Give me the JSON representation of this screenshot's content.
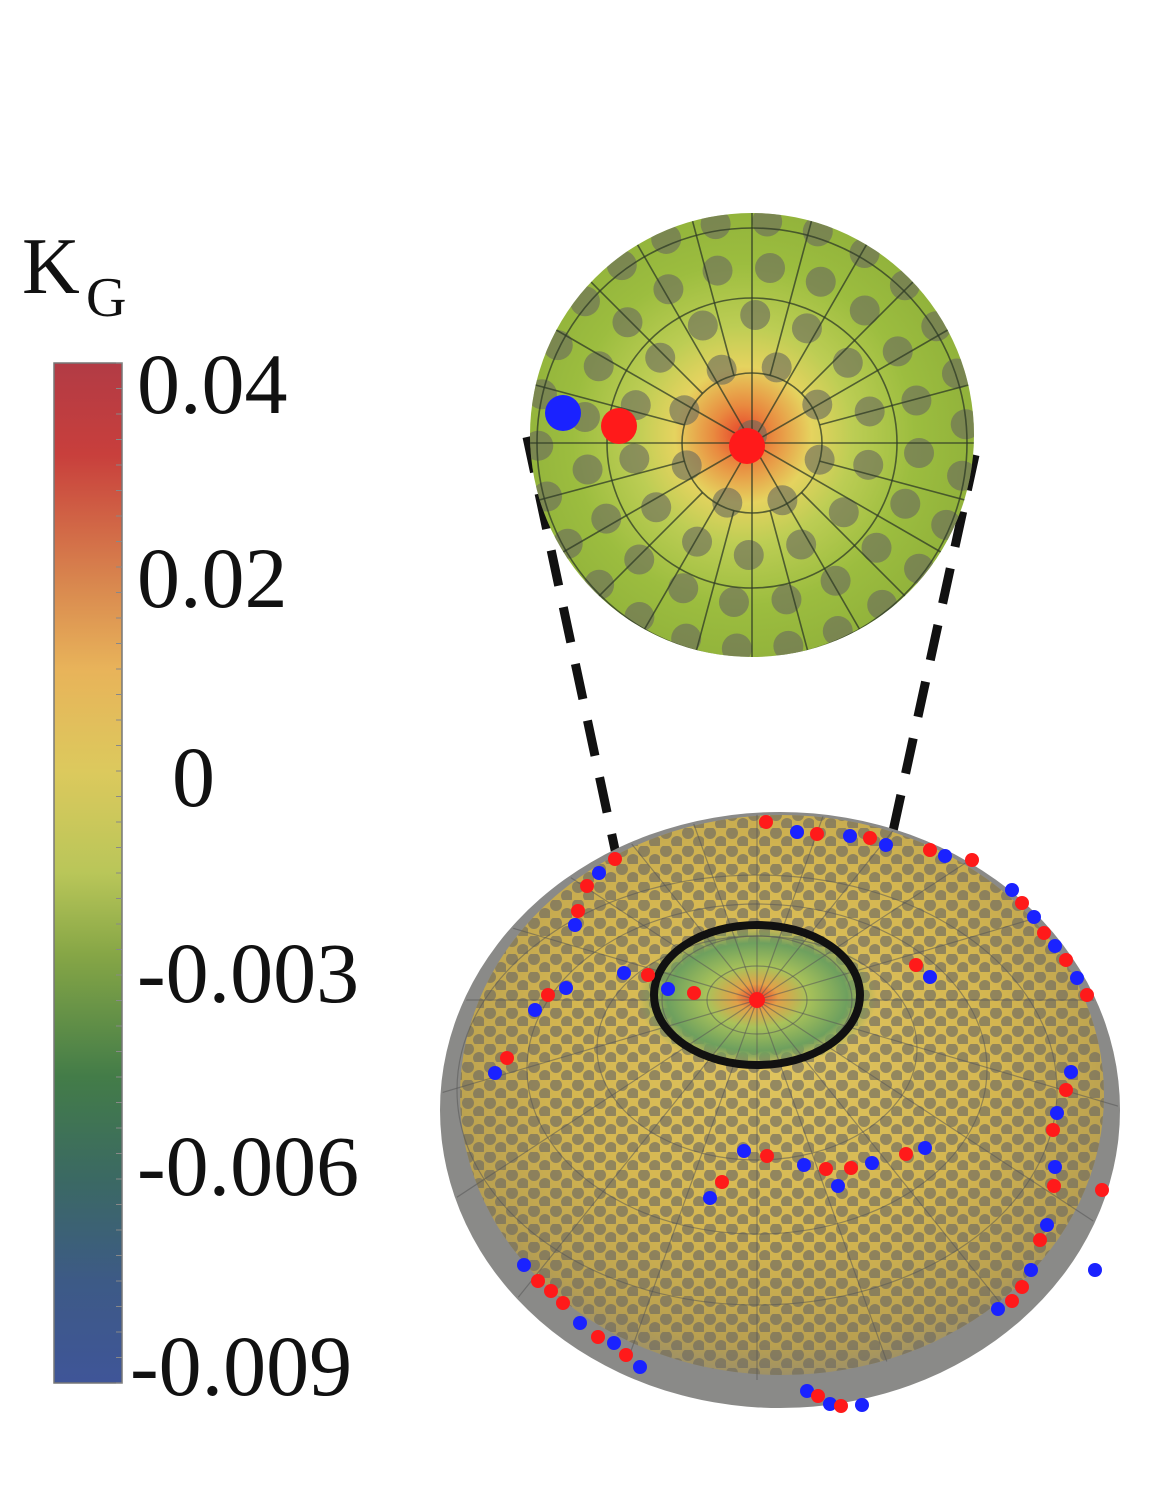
{
  "colorbar": {
    "title_main": "K",
    "title_sub": "G",
    "ticks": [
      "0.04",
      "0.02",
      "0",
      "-0.003",
      "-0.006",
      "-0.009"
    ],
    "colors": [
      "#b93b44",
      "#c9483d",
      "#d98a4e",
      "#e8c760",
      "#c7cb5c",
      "#7f9f45",
      "#3f7a4a",
      "#3c6373",
      "#3d5796"
    ]
  },
  "defect_colors": {
    "positive": "#ff1a1a",
    "negative": "#1a22ff"
  }
}
